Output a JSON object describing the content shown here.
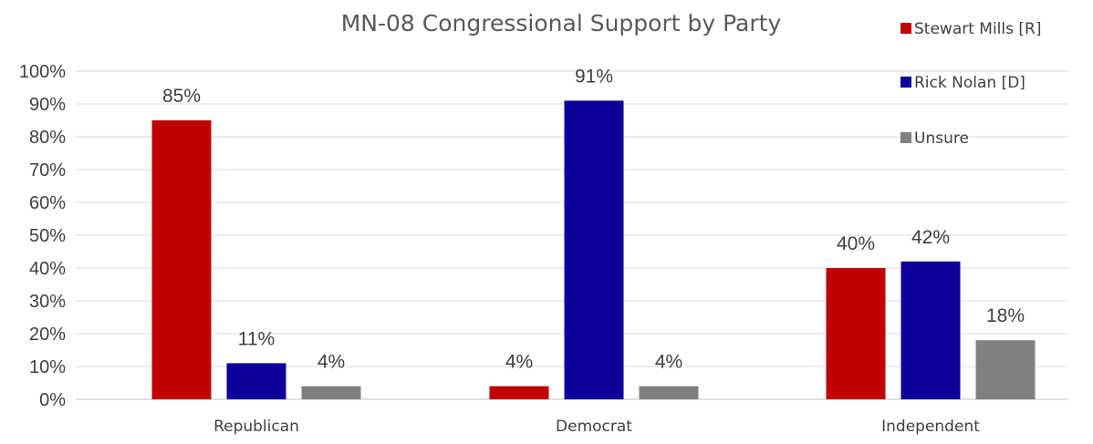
{
  "chart_data": {
    "type": "bar",
    "title": "MN-08 Congressional Support by Party",
    "categories": [
      "Republican",
      "Democrat",
      "Independent"
    ],
    "series": [
      {
        "name": "Stewart Mills [R]",
        "color": "#c00000",
        "values": [
          85,
          4,
          40
        ]
      },
      {
        "name": "Rick Nolan [D]",
        "color": "#0d009b",
        "values": [
          11,
          91,
          42
        ]
      },
      {
        "name": "Unsure",
        "color": "#808080",
        "values": [
          4,
          4,
          18
        ]
      }
    ],
    "data_labels": [
      [
        "85%",
        "4%",
        "40%"
      ],
      [
        "11%",
        "91%",
        "42%"
      ],
      [
        "4%",
        "4%",
        "18%"
      ]
    ],
    "y_ticks": [
      "0%",
      "10%",
      "20%",
      "30%",
      "40%",
      "50%",
      "60%",
      "70%",
      "80%",
      "90%",
      "100%"
    ],
    "ylim": [
      0,
      100
    ],
    "y_tick_values": [
      0,
      10,
      20,
      30,
      40,
      50,
      60,
      70,
      80,
      90,
      100
    ],
    "xlabel": "",
    "ylabel": "",
    "grid": true,
    "legend_position": "top-right"
  }
}
